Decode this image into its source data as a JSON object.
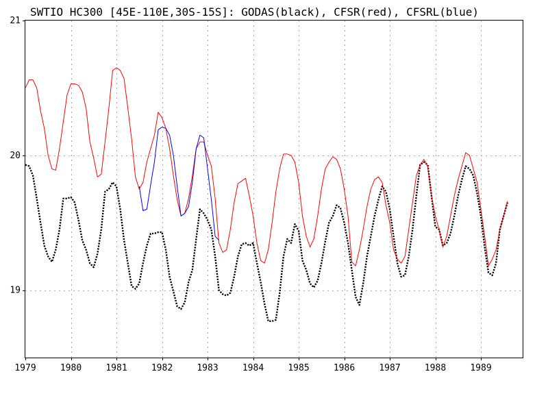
{
  "chart_data": {
    "type": "line",
    "title": "SWTIO HC300 [45E-110E,30S-15S]: GODAS(black), CFSR(red), CFSRL(blue)",
    "xlabel": "",
    "ylabel": "",
    "xlim": [
      1979.0,
      1989.917
    ],
    "ylim": [
      18.5,
      21.0
    ],
    "grid": true,
    "x_ticks": [
      1979,
      1980,
      1981,
      1982,
      1983,
      1984,
      1985,
      1986,
      1987,
      1988,
      1989
    ],
    "x_tick_labels": [
      "1979",
      "1980",
      "1981",
      "1982",
      "1983",
      "1984",
      "1985",
      "1986",
      "1987",
      "1988",
      "1989"
    ],
    "y_ticks": [
      19,
      20,
      21
    ],
    "y_tick_labels": [
      "19",
      "20",
      "21"
    ],
    "colors": {
      "GODAS": "#000000",
      "CFSR": "#ff0000",
      "CFSRL": "#0000ff"
    },
    "series": [
      {
        "key": "GODAS",
        "style": "dotted",
        "x_start": 1979.0,
        "x_step": 0.08333,
        "values": [
          19.93,
          19.92,
          19.85,
          19.68,
          19.5,
          19.33,
          19.25,
          19.21,
          19.3,
          19.45,
          19.68,
          19.68,
          19.69,
          19.65,
          19.52,
          19.37,
          19.3,
          19.2,
          19.17,
          19.27,
          19.45,
          19.73,
          19.75,
          19.8,
          19.77,
          19.6,
          19.37,
          19.2,
          19.03,
          19.01,
          19.05,
          19.2,
          19.33,
          19.42,
          19.42,
          19.43,
          19.43,
          19.3,
          19.1,
          18.99,
          18.88,
          18.86,
          18.91,
          19.06,
          19.15,
          19.38,
          19.6,
          19.57,
          19.52,
          19.45,
          19.25,
          19.0,
          18.97,
          18.96,
          18.98,
          19.1,
          19.25,
          19.34,
          19.35,
          19.33,
          19.35,
          19.2,
          19.06,
          18.9,
          18.77,
          18.77,
          18.78,
          18.98,
          19.25,
          19.38,
          19.35,
          19.49,
          19.44,
          19.22,
          19.15,
          19.05,
          19.02,
          19.07,
          19.2,
          19.36,
          19.5,
          19.55,
          19.63,
          19.61,
          19.5,
          19.35,
          19.15,
          18.95,
          18.89,
          19.05,
          19.25,
          19.4,
          19.55,
          19.67,
          19.77,
          19.73,
          19.6,
          19.4,
          19.2,
          19.1,
          19.11,
          19.25,
          19.45,
          19.7,
          19.93,
          19.95,
          19.93,
          19.7,
          19.47,
          19.45,
          19.33,
          19.35,
          19.42,
          19.55,
          19.7,
          19.82,
          19.92,
          19.9,
          19.85,
          19.72,
          19.55,
          19.32,
          19.13,
          19.11,
          19.2,
          19.45,
          19.55,
          19.65
        ]
      },
      {
        "key": "CFSR",
        "style": "solid",
        "x_start": 1979.0,
        "x_step": 0.08333,
        "values": [
          20.5,
          20.56,
          20.56,
          20.5,
          20.33,
          20.2,
          20.0,
          19.9,
          19.89,
          20.05,
          20.25,
          20.45,
          20.53,
          20.53,
          20.52,
          20.47,
          20.35,
          20.1,
          19.98,
          19.84,
          19.86,
          20.1,
          20.35,
          20.63,
          20.65,
          20.63,
          20.57,
          20.35,
          20.12,
          19.84,
          19.75,
          19.8,
          19.95,
          20.05,
          20.15,
          20.32,
          20.28,
          20.2,
          20.05,
          19.85,
          19.67,
          19.55,
          19.57,
          19.68,
          19.85,
          20.05,
          20.1,
          20.1,
          20.0,
          19.92,
          19.68,
          19.35,
          19.28,
          19.3,
          19.45,
          19.65,
          19.79,
          19.81,
          19.83,
          19.7,
          19.55,
          19.35,
          19.22,
          19.2,
          19.3,
          19.5,
          19.73,
          19.9,
          20.01,
          20.01,
          20.0,
          19.95,
          19.8,
          19.55,
          19.4,
          19.32,
          19.38,
          19.55,
          19.75,
          19.9,
          19.95,
          19.99,
          19.97,
          19.9,
          19.75,
          19.55,
          19.21,
          19.18,
          19.3,
          19.45,
          19.62,
          19.75,
          19.82,
          19.84,
          19.8,
          19.63,
          19.5,
          19.3,
          19.23,
          19.2,
          19.25,
          19.45,
          19.65,
          19.85,
          19.93,
          19.97,
          19.92,
          19.7,
          19.55,
          19.45,
          19.32,
          19.4,
          19.55,
          19.7,
          19.82,
          19.92,
          20.02,
          20.0,
          19.9,
          19.8,
          19.6,
          19.4,
          19.18,
          19.23,
          19.3,
          19.45,
          19.55,
          19.66
        ]
      },
      {
        "key": "CFSRL",
        "style": "solid",
        "x_start": 1981.5,
        "x_step": 0.08333,
        "values": [
          19.77,
          19.59,
          19.6,
          19.78,
          19.95,
          20.19,
          20.21,
          20.2,
          20.15,
          20.0,
          19.77,
          19.55,
          19.57,
          19.62,
          19.8,
          20.05,
          20.15,
          20.13,
          19.9,
          19.67,
          19.4,
          19.37
        ]
      }
    ]
  }
}
